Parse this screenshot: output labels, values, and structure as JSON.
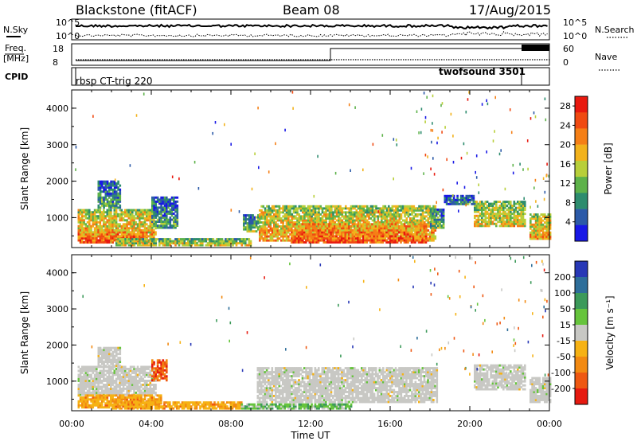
{
  "header": {
    "station": "Blackstone (fitACF)",
    "beam": "Beam 08",
    "date": "17/Aug/2015"
  },
  "summary_panels": {
    "nsky_label": "N.Sky",
    "nsearch_label": "N.Search",
    "counts_ticks": [
      "10^5",
      "10^0"
    ],
    "freq_label_1": "Freq.",
    "freq_label_2": "[MHz]",
    "freq_ticks": [
      "18",
      "8"
    ],
    "nave_label": "Nave",
    "nave_ticks": [
      "60",
      "0"
    ],
    "cpid_label": "CPID",
    "cpid_segments": [
      {
        "name": "rbsp CT-trig 220",
        "start": 0.2,
        "end": 22.6
      },
      {
        "name": "twofsound 3501",
        "start": 22.6,
        "end": 24.0
      }
    ],
    "freq_series": [
      {
        "start": 0.2,
        "end": 13.0,
        "mhz": 9
      },
      {
        "start": 13.0,
        "end": 24.0,
        "mhz": 17
      }
    ],
    "nave_series": {
      "start": 0.2,
      "end": 24.0,
      "value": 2
    }
  },
  "chart_data": [
    {
      "type": "heatmap",
      "name": "power",
      "ylabel": "Slant Range [km]",
      "xlabel": "Time UT",
      "x_ticks": [
        "00:00",
        "04:00",
        "08:00",
        "12:00",
        "16:00",
        "20:00",
        "00:00"
      ],
      "xlim_hours": [
        0,
        24
      ],
      "y_ticks": [
        1000,
        2000,
        3000,
        4000
      ],
      "ylim_km": [
        180,
        4500
      ],
      "colorbar": {
        "label": "Power [dB]",
        "ticks": [
          4,
          8,
          12,
          16,
          20,
          24,
          28
        ],
        "range": [
          0,
          30
        ],
        "colors": [
          "#1818e6",
          "#2c5aa8",
          "#2d8c6e",
          "#5eb24a",
          "#b8cf3a",
          "#f2b21c",
          "#f57f16",
          "#f04a12",
          "#e8190f"
        ]
      },
      "regions": [
        {
          "t": [
            0.3,
            4.2
          ],
          "r": [
            300,
            1200
          ],
          "level": 0.72
        },
        {
          "t": [
            0.3,
            3.8
          ],
          "r": [
            300,
            650
          ],
          "level": 0.9
        },
        {
          "t": [
            1.3,
            2.4
          ],
          "r": [
            1250,
            2000
          ],
          "level": 0.3
        },
        {
          "t": [
            4.0,
            5.3
          ],
          "r": [
            700,
            1550
          ],
          "level": 0.35
        },
        {
          "t": [
            2.2,
            9.0
          ],
          "r": [
            220,
            420
          ],
          "level": 0.55
        },
        {
          "t": [
            8.6,
            9.4
          ],
          "r": [
            600,
            1050
          ],
          "level": 0.45
        },
        {
          "t": [
            9.4,
            18.3
          ],
          "r": [
            350,
            1300
          ],
          "level": 0.7
        },
        {
          "t": [
            11.0,
            17.8
          ],
          "r": [
            300,
            800
          ],
          "level": 0.88
        },
        {
          "t": [
            18.0,
            18.7
          ],
          "r": [
            700,
            1200
          ],
          "level": 0.4
        },
        {
          "t": [
            18.7,
            20.2
          ],
          "r": [
            1350,
            1600
          ],
          "level": 0.25
        },
        {
          "t": [
            20.2,
            22.8
          ],
          "r": [
            750,
            1450
          ],
          "level": 0.6
        },
        {
          "t": [
            23.0,
            24.0
          ],
          "r": [
            400,
            1100
          ],
          "level": 0.7
        }
      ],
      "scatter_pixels": 130
    },
    {
      "type": "heatmap",
      "name": "velocity",
      "ylabel": "Slant Range [km]",
      "xlabel": "Time UT",
      "x_ticks": [
        "00:00",
        "04:00",
        "08:00",
        "12:00",
        "16:00",
        "20:00",
        "00:00"
      ],
      "xlim_hours": [
        0,
        24
      ],
      "y_ticks": [
        1000,
        2000,
        3000,
        4000
      ],
      "ylim_km": [
        180,
        4500
      ],
      "colorbar": {
        "label": "Velocity [m s⁻¹]",
        "ticks": [
          200,
          100,
          50,
          15,
          -15,
          -50,
          -100,
          -200
        ],
        "colors": [
          "#2838b6",
          "#2e6e9a",
          "#3c9a5a",
          "#66c43c",
          "#c8c8c4",
          "#f6b214",
          "#f28a12",
          "#ee5812",
          "#e61a10"
        ]
      },
      "regions": [
        {
          "t": [
            0.3,
            4.2
          ],
          "r": [
            600,
            1400
          ],
          "level": 4
        },
        {
          "t": [
            0.3,
            4.5
          ],
          "r": [
            250,
            600
          ],
          "level": 5
        },
        {
          "t": [
            4.0,
            4.8
          ],
          "r": [
            1000,
            1600
          ],
          "level": 7
        },
        {
          "t": [
            1.3,
            2.4
          ],
          "r": [
            1400,
            1900
          ],
          "level": 4
        },
        {
          "t": [
            2.0,
            8.5
          ],
          "r": [
            220,
            400
          ],
          "level": 5
        },
        {
          "t": [
            8.5,
            14.0
          ],
          "r": [
            220,
            380
          ],
          "level": 3
        },
        {
          "t": [
            9.3,
            18.3
          ],
          "r": [
            400,
            1350
          ],
          "level": 4
        },
        {
          "t": [
            20.2,
            22.8
          ],
          "r": [
            750,
            1450
          ],
          "level": 4
        },
        {
          "t": [
            23.0,
            24.0
          ],
          "r": [
            400,
            1100
          ],
          "level": 4
        }
      ],
      "scatter_pixels": 110
    }
  ]
}
